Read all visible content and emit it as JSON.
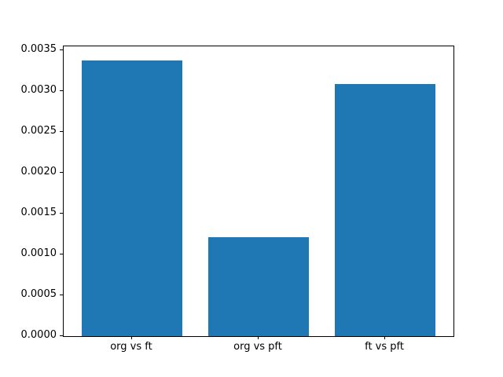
{
  "chart_data": {
    "type": "bar",
    "categories": [
      "org vs ft",
      "org vs pft",
      "ft vs pft"
    ],
    "values": [
      0.00338,
      0.00121,
      0.00309
    ],
    "title": "",
    "xlabel": "",
    "ylabel": "",
    "ylim": [
      0,
      0.003549
    ],
    "ytick_step": 0.0005,
    "ytick_labels": [
      "0.0000",
      "0.0005",
      "0.0010",
      "0.0015",
      "0.0020",
      "0.0025",
      "0.0030",
      "0.0035"
    ],
    "bar_color": "#1f77b4",
    "axes_color": "#000000",
    "background_color": "#ffffff",
    "grid": false,
    "legend": null
  }
}
